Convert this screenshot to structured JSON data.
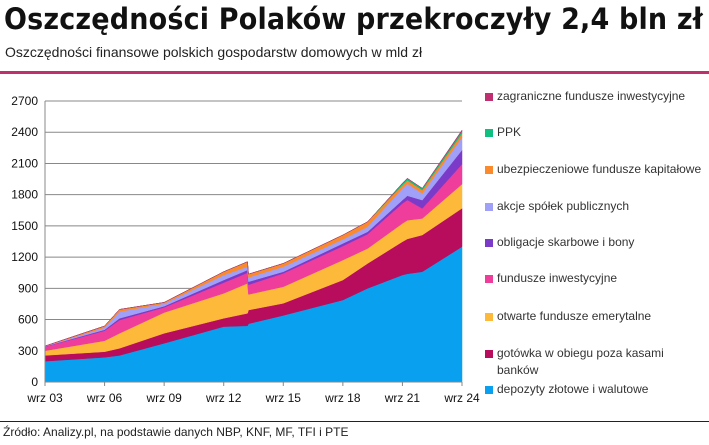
{
  "header": {
    "title": "Oszczędności Polaków przekroczyły 2,4 bln zł",
    "subtitle": "Oszczędności finansowe polskich gospodarstw domowych w mld zł"
  },
  "footer": {
    "source": "Źródło: Analizy.pl, na podstawie danych NBP, KNF, MF, TFI i PTE"
  },
  "chart_data": {
    "type": "area",
    "stacked": true,
    "title": "Oszczędności Polaków przekroczyły 2,4 bln zł",
    "ylabel": "mld zł",
    "ylim": [
      0,
      2700
    ],
    "yticks": [
      "0",
      "300",
      "600",
      "900",
      "1200",
      "1500",
      "1800",
      "2100",
      "2400",
      "2700"
    ],
    "xlim": [
      2003.75,
      2024.75
    ],
    "xticks": [
      {
        "label": "wrz 03",
        "x": 2003.75
      },
      {
        "label": "wrz 06",
        "x": 2006.75
      },
      {
        "label": "wrz 09",
        "x": 2009.75
      },
      {
        "label": "wrz 12",
        "x": 2012.75
      },
      {
        "label": "wrz 15",
        "x": 2015.75
      },
      {
        "label": "wrz 18",
        "x": 2018.75
      },
      {
        "label": "wrz 21",
        "x": 2021.75
      },
      {
        "label": "wrz 24",
        "x": 2024.75
      }
    ],
    "grid": true,
    "legend_position": "right",
    "x": [
      2003.75,
      2006.75,
      2007.5,
      2009.75,
      2012.75,
      2013.95,
      2014.0,
      2015.75,
      2018.75,
      2020.0,
      2021.75,
      2022.0,
      2022.75,
      2024.75
    ],
    "series": [
      {
        "name": "depozyty złotowe i walutowe",
        "color": "#0aa0f0",
        "values": [
          200,
          237,
          256,
          372,
          532,
          540,
          560,
          640,
          788,
          900,
          1028,
          1040,
          1060,
          1300
        ]
      },
      {
        "name": "gotówka w obiegu poza kasami banków",
        "color": "#b80c5c",
        "values": [
          56,
          54,
          68,
          96,
          80,
          120,
          132,
          116,
          192,
          240,
          320,
          335,
          352,
          369
        ]
      },
      {
        "name": "otwarte fundusze emerytalne",
        "color": "#fdb93a",
        "values": [
          45,
          106,
          144,
          200,
          240,
          288,
          150,
          160,
          192,
          144,
          176,
          180,
          160,
          233
        ]
      },
      {
        "name": "fundusze inwestycyjne",
        "color": "#ee3d9a",
        "values": [
          38,
          96,
          128,
          50,
          103,
          102,
          93,
          128,
          135,
          138,
          192,
          195,
          96,
          192
        ]
      },
      {
        "name": "obligacje skarbowe i bony",
        "color": "#7c3ac8",
        "values": [
          3,
          10,
          16,
          10,
          25,
          26,
          29,
          16,
          25,
          22,
          32,
          40,
          80,
          135
        ]
      },
      {
        "name": "akcje spółek publicznych",
        "color": "#a0a0f8",
        "values": [
          2,
          20,
          64,
          25,
          48,
          32,
          41,
          48,
          39,
          48,
          112,
          115,
          64,
          122
        ]
      },
      {
        "name": "ubezpieczeniowe fundusze kapitałowe",
        "color": "#fb8a2c",
        "values": [
          2,
          15,
          22,
          12,
          32,
          48,
          32,
          32,
          41,
          48,
          32,
          33,
          33,
          38
        ]
      },
      {
        "name": "PPK",
        "color": "#10c080",
        "values": [
          0,
          0,
          0,
          0,
          0,
          0,
          0,
          0,
          0,
          0,
          16,
          17,
          15,
          23
        ]
      },
      {
        "name": "zagraniczne fundusze inwestycyjne",
        "color": "#c03070",
        "values": [
          0,
          0,
          0,
          0,
          0,
          0,
          0,
          0,
          0,
          0,
          2,
          2,
          2,
          8
        ]
      }
    ]
  }
}
